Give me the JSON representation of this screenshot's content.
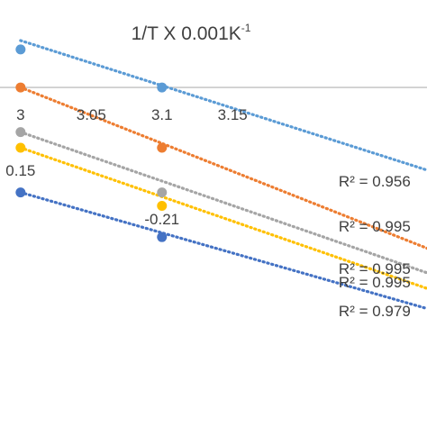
{
  "chart_data": {
    "type": "scatter",
    "title": "1/T X 0.001K",
    "title_superscript": "-1",
    "x_tick_labels": [
      "3",
      "3.05",
      "3.1",
      "3.15"
    ],
    "x_tick_values": [
      3.0,
      3.05,
      3.1,
      3.15
    ],
    "xlim": [
      2.995,
      3.2875
    ],
    "ylim": [
      -0.5,
      0.105
    ],
    "axis_crossing_y": 0,
    "y_value_labels": [
      {
        "text": "0.15",
        "x": 3.0,
        "y": -0.185
      },
      {
        "text": "-0.21",
        "x": 3.1,
        "y": -0.294
      }
    ],
    "series": [
      {
        "color": "#5B9BD5",
        "values": [
          {
            "x": 3.0,
            "y": 0.085
          },
          {
            "x": 3.1,
            "y": 0.0
          }
        ],
        "trendline": [
          {
            "x": 3.0,
            "y": 0.105
          },
          {
            "x": 3.2875,
            "y": -0.185
          }
        ]
      },
      {
        "color": "#ED7D31",
        "values": [
          {
            "x": 3.0,
            "y": 0.0
          },
          {
            "x": 3.1,
            "y": -0.135
          }
        ],
        "trendline": [
          {
            "x": 3.0,
            "y": 0.0
          },
          {
            "x": 3.2875,
            "y": -0.36
          }
        ]
      },
      {
        "color": "#A5A5A5",
        "values": [
          {
            "x": 3.0,
            "y": -0.1
          },
          {
            "x": 3.1,
            "y": -0.235
          }
        ],
        "trendline": [
          {
            "x": 3.0,
            "y": -0.1
          },
          {
            "x": 3.2875,
            "y": -0.415
          }
        ]
      },
      {
        "color": "#FFC000",
        "values": [
          {
            "x": 3.0,
            "y": -0.135
          },
          {
            "x": 3.1,
            "y": -0.265
          }
        ],
        "trendline": [
          {
            "x": 3.0,
            "y": -0.135
          },
          {
            "x": 3.2875,
            "y": -0.45
          }
        ]
      },
      {
        "color": "#4472C4",
        "values": [
          {
            "x": 3.0,
            "y": -0.235
          },
          {
            "x": 3.1,
            "y": -0.335
          }
        ],
        "trendline": [
          {
            "x": 3.0,
            "y": -0.235
          },
          {
            "x": 3.2875,
            "y": -0.495
          }
        ]
      }
    ],
    "annotations": [
      {
        "text": "R² = 0.956",
        "x": 3.225,
        "y": -0.21
      },
      {
        "text": "R² = 0.995",
        "x": 3.225,
        "y": -0.31
      },
      {
        "text": "R² = 0.995",
        "x": 3.225,
        "y": -0.405
      },
      {
        "text": "R² = 0.995",
        "x": 3.225,
        "y": -0.435
      },
      {
        "text": "R² = 0.979",
        "x": 3.225,
        "y": -0.5
      }
    ],
    "grid": false,
    "legend": "none"
  }
}
